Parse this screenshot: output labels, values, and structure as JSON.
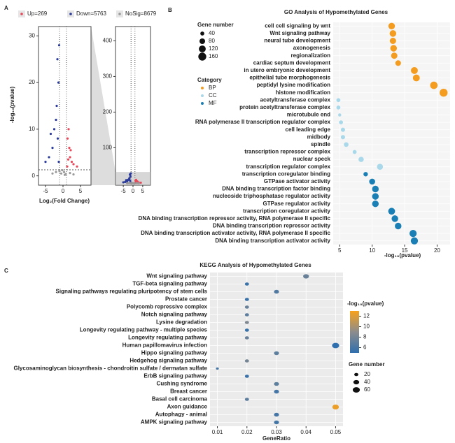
{
  "chart_data": [
    {
      "type": "scatter",
      "panel_label": "A",
      "xlabel": "Log₂(Fold Change)",
      "ylabel": "-log₁₀(pvalue)",
      "xlim": [
        -7,
        8
      ],
      "ylim": [
        -2,
        32
      ],
      "xticks": [
        -5,
        0,
        5
      ],
      "yticks": [
        0,
        10,
        20,
        30
      ],
      "hline": 1.3,
      "vlines": [
        -1,
        1
      ],
      "series": [
        {
          "name": "Up=269",
          "color": "#e8485a",
          "x": [
            1.2,
            1.5,
            2,
            1.8,
            2.5,
            3,
            1.3,
            4,
            2.2,
            1.6
          ],
          "values": [
            2,
            3.5,
            4,
            6,
            3,
            2.5,
            8,
            2,
            5.5,
            10
          ]
        },
        {
          "name": "Down=5763",
          "color": "#2a3a9a",
          "x": [
            -1.2,
            -1.5,
            -2,
            -1.3,
            -1.8,
            -3,
            -4,
            -2.5,
            -1.1,
            -1.6,
            -5,
            -3.5
          ],
          "values": [
            3,
            8,
            12,
            20,
            15,
            6,
            4,
            10,
            28,
            25,
            3,
            9
          ]
        },
        {
          "name": "NoSig=8679",
          "color": "#9a9a9a",
          "x": [
            -0.5,
            0.3,
            -1,
            0.8,
            -2,
            2,
            -0.2,
            0.5,
            -3,
            3
          ],
          "values": [
            0.5,
            0.8,
            1,
            0.4,
            0.8,
            0.6,
            1.2,
            0.2,
            0.5,
            0.3
          ]
        }
      ],
      "inset": {
        "xlim": [
          -9,
          9
        ],
        "ylim": [
          -5,
          440
        ],
        "xticks": [
          -5,
          0,
          5
        ],
        "yticks": [
          100,
          200,
          300,
          400
        ]
      }
    },
    {
      "type": "dot",
      "panel_label": "B",
      "title": "GO Analysis of Hypomethylated Genes",
      "xlabel": "-log₁₀(pvalue)",
      "xlim": [
        4,
        22
      ],
      "xticks": [
        5,
        10,
        15,
        20
      ],
      "size_title": "Gene number",
      "size_ticks": [
        40,
        80,
        120,
        160
      ],
      "legend_title": "Category",
      "categories": [
        "cell cell signaling by wnt",
        "Wnt signaling pathway",
        "neural tube development",
        "axonogenesis",
        "regionalization",
        "cardiac septum development",
        "in utero embryonic development",
        "epithelial tube morphogenesis",
        "peptidyl lysine modification",
        "histone modification",
        "acetyltransferase complex",
        "protein acetyltransferase complex",
        "microtubule end",
        "RNA polymerase II transcription regulator complex",
        "cell leading edge",
        "midbody",
        "spindle",
        "transcription repressor complex",
        "nuclear speck",
        "transcription regulator complex",
        "transcription coregulator binding",
        "GTPase activator activity",
        "DNA binding transcription factor binding",
        "nucleoside triphosphatase regulator activity",
        "GTPase regulator activity",
        "transcription coregulator activity",
        "DNA binding transcription repressor activity, RNA polymerase II specific",
        "DNA binding transcription repressor activity",
        "DNA binding transcription activator activity, RNA polymerase II specific",
        "DNA binding transcription activator activity"
      ],
      "series": [
        {
          "name": "BP",
          "color": "#f39c1f",
          "values": [
            13,
            13.2,
            13.2,
            13.3,
            13.4,
            14,
            16.5,
            16.8,
            19.5,
            21,
            null,
            null,
            null,
            null,
            null,
            null,
            null,
            null,
            null,
            null,
            null,
            null,
            null,
            null,
            null,
            null,
            null,
            null,
            null,
            null
          ],
          "sizes": [
            110,
            110,
            100,
            110,
            100,
            80,
            120,
            120,
            140,
            160,
            null,
            null,
            null,
            null,
            null,
            null,
            null,
            null,
            null,
            null,
            null,
            null,
            null,
            null,
            null,
            null,
            null,
            null,
            null,
            null
          ]
        },
        {
          "name": "CC",
          "color": "#a8d8ea",
          "values": [
            null,
            null,
            null,
            null,
            null,
            null,
            null,
            null,
            null,
            null,
            4.8,
            4.8,
            5,
            5.2,
            5.5,
            5.5,
            6,
            7.3,
            8.3,
            11.2,
            null,
            null,
            null,
            null,
            null,
            null,
            null,
            null,
            null,
            null
          ],
          "sizes": [
            null,
            null,
            null,
            null,
            null,
            null,
            null,
            null,
            null,
            null,
            40,
            40,
            25,
            40,
            45,
            45,
            55,
            40,
            70,
            90,
            null,
            null,
            null,
            null,
            null,
            null,
            null,
            null,
            null,
            null
          ]
        },
        {
          "name": "MF",
          "color": "#1a7fb5",
          "values": [
            null,
            null,
            null,
            null,
            null,
            null,
            null,
            null,
            null,
            null,
            null,
            null,
            null,
            null,
            null,
            null,
            null,
            null,
            null,
            null,
            9,
            10,
            10.5,
            10.5,
            10.5,
            13,
            13.5,
            14,
            16.3,
            16.5
          ],
          "sizes": [
            null,
            null,
            null,
            null,
            null,
            null,
            null,
            null,
            null,
            null,
            null,
            null,
            null,
            null,
            null,
            null,
            null,
            null,
            null,
            null,
            50,
            90,
            110,
            110,
            110,
            120,
            110,
            110,
            130,
            130
          ]
        }
      ]
    },
    {
      "type": "dot",
      "panel_label": "C",
      "title": "KEGG Analysis of Hypomethylated Genes",
      "xlabel": "GeneRatio",
      "xlim": [
        0.0075,
        0.0525
      ],
      "xticks": [
        0.01,
        0.02,
        0.03,
        0.04,
        0.05
      ],
      "color_title": "-log₁₀(pvalue)",
      "clim": [
        5,
        13
      ],
      "cticks": [
        6,
        8,
        10,
        12
      ],
      "colormap": [
        "#2f6fad",
        "#8c8c8c",
        "#f8a21b"
      ],
      "size_title": "Gene number",
      "size_ticks": [
        20,
        40,
        60
      ],
      "categories": [
        "Wnt signaling pathway",
        "TGF-beta signaling pathway",
        "Signaling pathways regulating pluripotency of stem cells",
        "Prostate cancer",
        "Polycomb repressive complex",
        "Notch signaling pathway",
        "Lysine degradation",
        "Longevity regulating pathway - multiple species",
        "Longevity regulating pathway",
        "Human papillomavirus infection",
        "Hippo signaling pathway",
        "Hedgehog signaling pathway",
        "Glycosaminoglycan biosynthesis - chondroitin sulfate / dermatan sulfate",
        "ErbB signaling pathway",
        "Cushing syndrome",
        "Breast cancer",
        "Basal cell carcinoma",
        "Axon guidance",
        "Autophagy - animal",
        "AMPK signaling pathway"
      ],
      "values": [
        0.04,
        0.02,
        0.03,
        0.02,
        0.02,
        0.02,
        0.02,
        0.02,
        0.02,
        0.05,
        0.03,
        0.02,
        0.01,
        0.02,
        0.03,
        0.03,
        0.02,
        0.05,
        0.03,
        0.03
      ],
      "color_values": [
        7.5,
        5.5,
        6.5,
        5.5,
        7.5,
        7,
        8.5,
        5.5,
        7.5,
        5,
        7,
        8,
        6,
        5.5,
        7,
        6,
        7,
        12.5,
        6,
        6
      ],
      "sizes": [
        40,
        20,
        30,
        20,
        20,
        20,
        20,
        20,
        20,
        60,
        30,
        20,
        10,
        20,
        30,
        30,
        20,
        50,
        30,
        30
      ]
    }
  ]
}
